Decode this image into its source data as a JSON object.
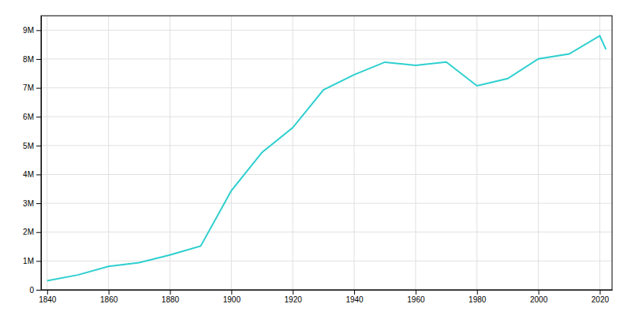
{
  "chart_data": {
    "type": "line",
    "x": [
      1840,
      1850,
      1860,
      1870,
      1880,
      1890,
      1900,
      1910,
      1920,
      1930,
      1940,
      1950,
      1960,
      1970,
      1980,
      1990,
      2000,
      2010,
      2020,
      2022
    ],
    "values": [
      312710,
      515547,
      813669,
      942292,
      1206299,
      1515301,
      3437202,
      4766883,
      5620048,
      6930446,
      7454995,
      7891957,
      7781984,
      7894862,
      7071639,
      7322564,
      8008278,
      8175133,
      8804190,
      8335897
    ],
    "color": "#2ecfcf",
    "xlim": [
      1838,
      2024
    ],
    "ylim": [
      0,
      9500000
    ],
    "xticks": [
      1840,
      1860,
      1880,
      1900,
      1920,
      1940,
      1960,
      1980,
      2000,
      2020
    ],
    "yticks": [
      0,
      {
        "value": 1000000,
        "label": "1M"
      },
      {
        "value": 2000000,
        "label": "2M"
      },
      {
        "value": 3000000,
        "label": "3M"
      },
      {
        "value": 4000000,
        "label": "4M"
      },
      {
        "value": 5000000,
        "label": "5M"
      },
      {
        "value": 6000000,
        "label": "6M"
      },
      {
        "value": 7000000,
        "label": "7M"
      },
      {
        "value": 8000000,
        "label": "8M"
      },
      {
        "value": 9000000,
        "label": "9M"
      }
    ],
    "grid": true
  }
}
